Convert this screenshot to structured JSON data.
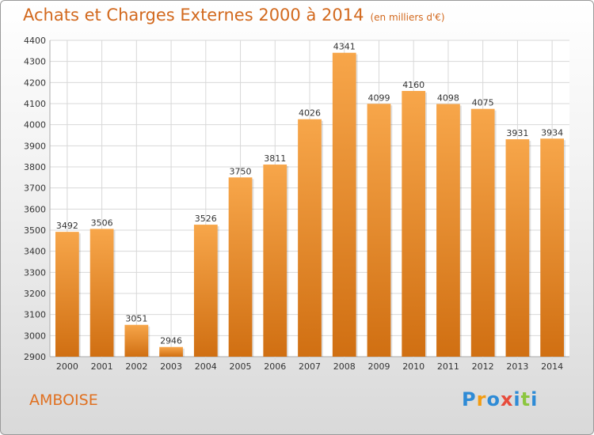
{
  "header": {
    "title": "Achats et Charges Externes 2000 à 2014",
    "subtitle": "(en milliers d'€)"
  },
  "place_label": "AMBOISE",
  "brand": {
    "text": "Proxiti",
    "letter_colors": [
      "#2e8bd6",
      "#f39c12",
      "#2e8bd6",
      "#e74c3c",
      "#2e8bd6",
      "#8cc63f",
      "#2e8bd6"
    ]
  },
  "colors": {
    "bar_top": "#f7a64a",
    "bar_bottom": "#d06f12",
    "grid": "#d8d8d8",
    "title": "#d2691e"
  },
  "chart_data": {
    "type": "bar",
    "title": "Achats et Charges Externes 2000 à 2014",
    "subtitle": "(en milliers d'€)",
    "categories": [
      "2000",
      "2001",
      "2002",
      "2003",
      "2004",
      "2005",
      "2006",
      "2007",
      "2008",
      "2009",
      "2010",
      "2011",
      "2012",
      "2013",
      "2014"
    ],
    "values": [
      3492,
      3506,
      3051,
      2946,
      3526,
      3750,
      3811,
      4026,
      4341,
      4099,
      4160,
      4098,
      4075,
      3931,
      3934
    ],
    "ylim": [
      2900,
      4400
    ],
    "yticks": [
      2900,
      3000,
      3100,
      3200,
      3300,
      3400,
      3500,
      3600,
      3700,
      3800,
      3900,
      4000,
      4100,
      4200,
      4300,
      4400
    ],
    "grid": true,
    "xlabel": "",
    "ylabel": ""
  }
}
